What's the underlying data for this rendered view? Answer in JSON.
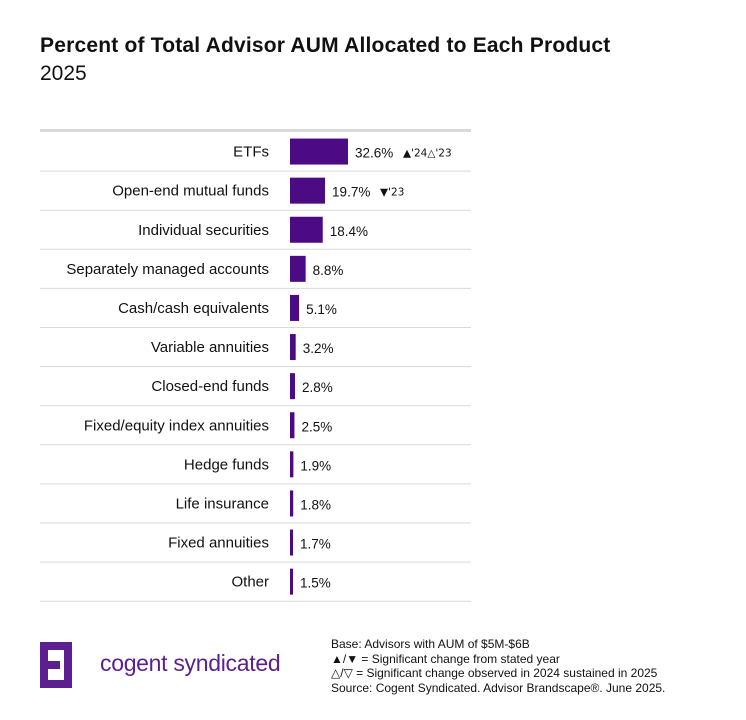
{
  "header": {
    "title": "Percent of Total Advisor AUM Allocated to Each Product",
    "subtitle": "2025"
  },
  "colors": {
    "bar": "#4b0b82",
    "brand": "#5b1f8f",
    "row_divider": "#d9d9d9"
  },
  "chart_data": {
    "type": "bar",
    "orientation": "horizontal",
    "categories": [
      "ETFs",
      "Open-end mutual funds",
      "Individual securities",
      "Separately managed accounts",
      "Cash/cash equivalents",
      "Variable annuities",
      "Closed-end funds",
      "Fixed/equity index annuities",
      "Hedge funds",
      "Life insurance",
      "Fixed annuities",
      "Other"
    ],
    "values": [
      32.6,
      19.7,
      18.4,
      8.8,
      5.1,
      3.2,
      2.8,
      2.5,
      1.9,
      1.8,
      1.7,
      1.5
    ],
    "value_labels": [
      "32.6%",
      "19.7%",
      "18.4%",
      "8.8%",
      "5.1%",
      "3.2%",
      "2.8%",
      "2.5%",
      "1.9%",
      "1.8%",
      "1.7%",
      "1.5%"
    ],
    "significance": [
      "▲'24△'23",
      "▼'23",
      "",
      "",
      "",
      "",
      "",
      "",
      "",
      "",
      "",
      ""
    ],
    "title": "Percent of Total Advisor AUM Allocated to Each Product",
    "subtitle": "2025",
    "xlabel": "",
    "ylabel": "",
    "grid": false,
    "legend": "none"
  },
  "footer": {
    "logo_icon": "cogent-logo-icon",
    "brand": "cogent syndicated",
    "notes": [
      "Base: Advisors with AUM of $5M-$6B",
      "▲/▼ = Significant change from stated year",
      "△/▽ = Significant change observed in 2024 sustained in 2025",
      "Source: Cogent Syndicated. Advisor Brandscape®. June 2025."
    ]
  }
}
